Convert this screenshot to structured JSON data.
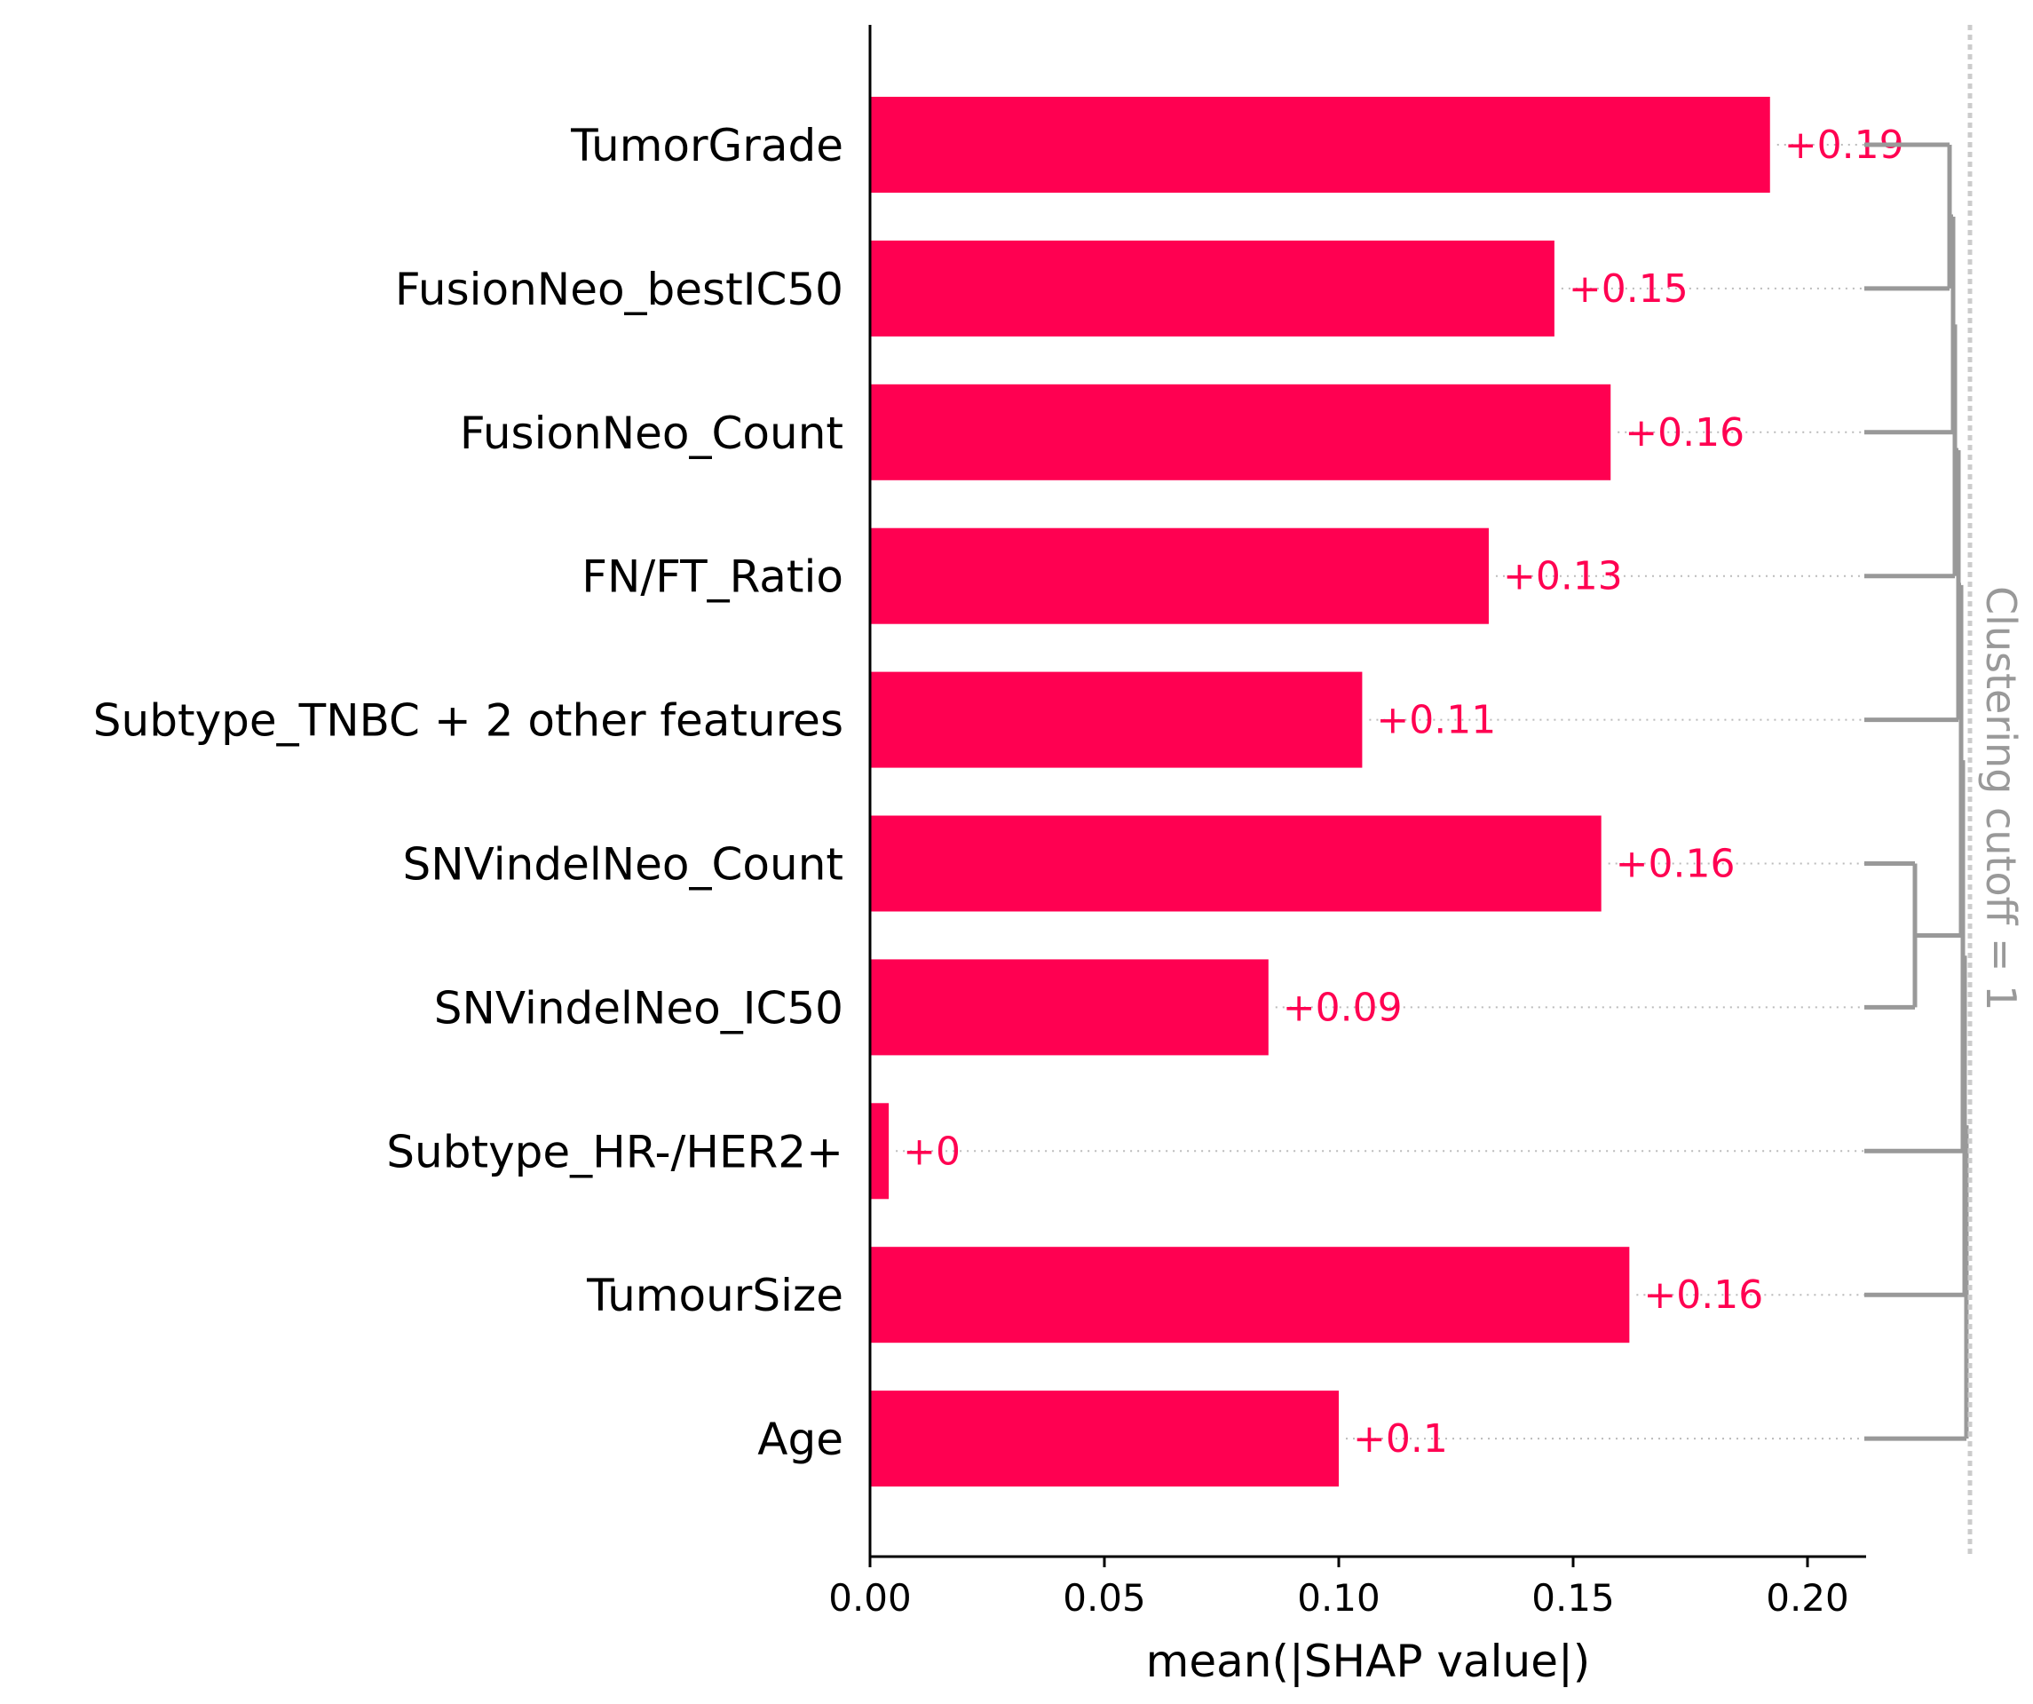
{
  "chart_data": {
    "type": "bar",
    "orientation": "horizontal",
    "xlabel": "mean(|SHAP value|)",
    "xlim": [
      0,
      0.2125
    ],
    "xticks": [
      "0.00",
      "0.05",
      "0.10",
      "0.15",
      "0.20"
    ],
    "categories": [
      "TumorGrade",
      "FusionNeo_bestIC50",
      "FusionNeo_Count",
      "FN/FT_Ratio",
      "Subtype_TNBC + 2 other features",
      "SNVindelNeo_Count",
      "SNVindelNeo_IC50",
      "Subtype_HR-/HER2+",
      "TumourSize",
      "Age"
    ],
    "values": [
      0.192,
      0.146,
      0.158,
      0.132,
      0.105,
      0.156,
      0.085,
      0.004,
      0.162,
      0.1
    ],
    "data_labels": [
      "+0.19",
      "+0.15",
      "+0.16",
      "+0.13",
      "+0.11",
      "+0.16",
      "+0.09",
      "+0",
      "+0.16",
      "+0.1"
    ],
    "cutoff_label": "Clustering cutoff = 1",
    "colors": {
      "bar": "#ff0051",
      "value_text": "#ff0051",
      "dendrogram": "#999999",
      "cutoff_line": "#cccccc",
      "axis": "#000000"
    },
    "grid": false
  }
}
